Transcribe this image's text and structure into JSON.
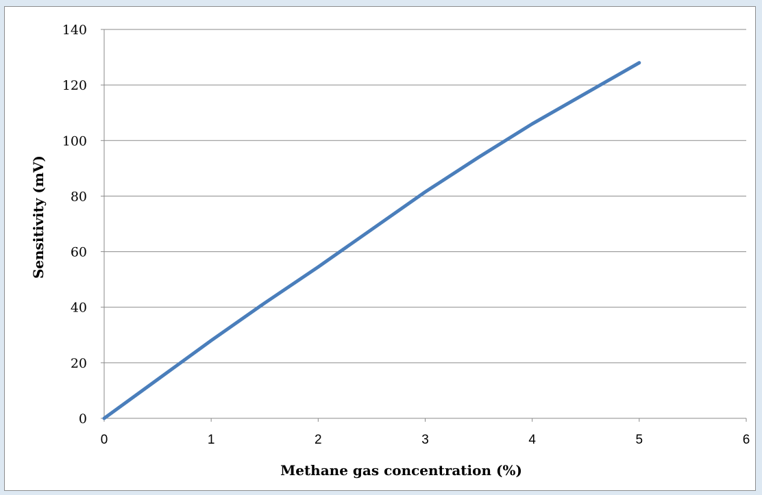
{
  "chart_data": {
    "type": "line",
    "title": "",
    "xlabel": "Methane gas concentration (%)",
    "ylabel": "Sensitivity (mV)",
    "xlim": [
      0,
      6
    ],
    "ylim": [
      0,
      140
    ],
    "xticks": [
      "0",
      "1",
      "2",
      "3",
      "4",
      "5",
      "6"
    ],
    "yticks": [
      "0",
      "20",
      "40",
      "60",
      "80",
      "100",
      "120",
      "140"
    ],
    "grid": "horizontal",
    "legend": "none",
    "series": [
      {
        "color": "#4a7ebb",
        "x": [
          0,
          0.5,
          1,
          1.5,
          2,
          2.5,
          3,
          3.5,
          4,
          4.5,
          5
        ],
        "y": [
          0,
          14,
          28,
          41.5,
          54.5,
          68,
          81.5,
          94,
          106,
          117,
          128
        ]
      }
    ]
  }
}
